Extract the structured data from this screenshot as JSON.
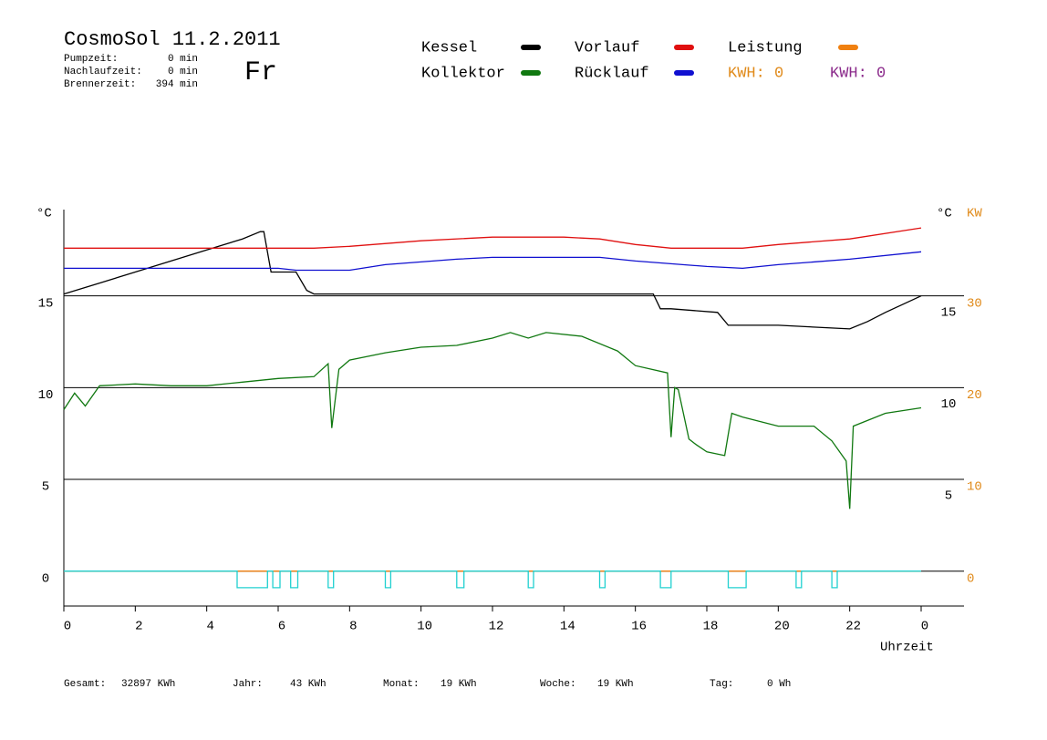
{
  "header": {
    "title": "CosmoSol 11.2.2011",
    "day": "Fr",
    "info": [
      [
        "Pumpzeit:",
        "0 min"
      ],
      [
        "Nachlaufzeit:",
        "0 min"
      ],
      [
        "Brennerzeit:",
        "394 min"
      ]
    ]
  },
  "kwh_labels": [
    {
      "text": "KWH: 0",
      "color": "#e08a1a"
    },
    {
      "text": "KWH: 0",
      "color": "#8b2a8b"
    }
  ],
  "footer": [
    [
      "Gesamt:",
      "32897 KWh"
    ],
    [
      "Jahr:",
      "43 KWh"
    ],
    [
      "Monat:",
      "19 KWh"
    ],
    [
      "Woche:",
      "19 KWh"
    ],
    [
      "Tag:",
      "0 Wh"
    ]
  ],
  "chart_data": {
    "type": "line",
    "y_label": "°C",
    "y3_label": "°C",
    "y2_label": "KW",
    "x_label": "Uhrzeit",
    "xlim": [
      0,
      24.0
    ],
    "xticks": [
      0,
      2,
      4,
      6,
      8,
      10,
      12,
      14,
      16,
      18,
      20,
      22,
      {
        "value": 24,
        "label": "0"
      }
    ],
    "ylim": [
      -1.9,
      19.7
    ],
    "yticks": [
      0,
      5,
      10,
      15
    ],
    "y3ticks": [
      5,
      10,
      15
    ],
    "y2lim": [
      -3.8,
      39.4
    ],
    "y2ticks": [
      0,
      10,
      20,
      30
    ],
    "grid": true,
    "series": [
      {
        "name": "Kessel",
        "color": "#000000",
        "x": [
          0,
          1,
          2,
          3,
          4,
          5,
          5.5,
          5.6,
          5.8,
          6.5,
          6.8,
          7,
          10,
          14,
          16.5,
          16.7,
          17,
          18.3,
          18.6,
          20,
          22,
          22.5,
          23,
          24
        ],
        "values": [
          15.1,
          15.7,
          16.3,
          16.9,
          17.5,
          18.1,
          18.5,
          18.5,
          16.3,
          16.3,
          15.3,
          15.1,
          15.1,
          15.1,
          15.1,
          14.3,
          14.3,
          14.1,
          13.4,
          13.4,
          13.2,
          13.6,
          14.1,
          15.0
        ]
      },
      {
        "name": "Vorlauf",
        "color": "#e01010",
        "x": [
          0,
          6.5,
          7,
          8,
          10,
          12,
          14,
          15,
          16,
          17,
          18,
          19,
          20,
          22,
          24
        ],
        "values": [
          17.6,
          17.6,
          17.6,
          17.7,
          18.0,
          18.2,
          18.2,
          18.1,
          17.8,
          17.6,
          17.6,
          17.6,
          17.8,
          18.1,
          18.7
        ]
      },
      {
        "name": "Leistung",
        "color": "#f08010",
        "axis": "y2",
        "x": [
          0,
          24
        ],
        "values": [
          0,
          0
        ]
      },
      {
        "name": "Kollektor",
        "color": "#107810",
        "x": [
          0,
          0.3,
          0.6,
          1,
          2,
          3,
          4,
          5,
          6,
          7,
          7.4,
          7.5,
          7.7,
          8,
          9,
          10,
          11,
          12,
          12.5,
          13,
          13.5,
          14.5,
          15.5,
          16,
          16.9,
          17.0,
          17.1,
          17.2,
          17.5,
          17.7,
          18,
          18.5,
          18.7,
          19,
          20,
          21,
          21.5,
          21.9,
          22.0,
          22.1,
          23,
          24
        ],
        "values": [
          8.8,
          9.7,
          9.0,
          10.1,
          10.2,
          10.1,
          10.1,
          10.3,
          10.5,
          10.6,
          11.3,
          7.8,
          11.0,
          11.5,
          11.9,
          12.2,
          12.3,
          12.7,
          13.0,
          12.7,
          13.0,
          12.8,
          12.0,
          11.2,
          10.8,
          7.3,
          10.0,
          9.9,
          7.2,
          6.9,
          6.5,
          6.3,
          8.6,
          8.4,
          7.9,
          7.9,
          7.1,
          6.0,
          3.4,
          7.9,
          8.6,
          8.9
        ]
      },
      {
        "name": "Rücklauf",
        "color": "#1010d0",
        "x": [
          0,
          6,
          6.5,
          8,
          9,
          11,
          12,
          14,
          15,
          16,
          18,
          19,
          20,
          22,
          24
        ],
        "values": [
          16.5,
          16.5,
          16.4,
          16.4,
          16.7,
          17.0,
          17.1,
          17.1,
          17.1,
          16.9,
          16.6,
          16.5,
          16.7,
          17.0,
          17.4
        ]
      },
      {
        "color": "#20d0d0",
        "x": [
          0,
          4.85,
          4.85,
          5.7,
          5.7,
          5.85,
          5.85,
          6.05,
          6.05,
          6.35,
          6.35,
          6.55,
          6.55,
          7.4,
          7.4,
          7.55,
          7.55,
          9.0,
          9.0,
          9.15,
          9.15,
          11.0,
          11.0,
          11.2,
          11.2,
          13.0,
          13.0,
          13.15,
          13.15,
          15.0,
          15.0,
          15.15,
          15.15,
          16.7,
          16.7,
          17.0,
          17.0,
          18.6,
          18.6,
          19.1,
          19.1,
          20.5,
          20.5,
          20.65,
          20.65,
          21.5,
          21.5,
          21.65,
          21.65,
          24
        ],
        "values": [
          0,
          0,
          -0.9,
          -0.9,
          0,
          0,
          -0.9,
          -0.9,
          0,
          0,
          -0.9,
          -0.9,
          0,
          0,
          -0.9,
          -0.9,
          0,
          0,
          -0.9,
          -0.9,
          0,
          0,
          -0.9,
          -0.9,
          0,
          0,
          -0.9,
          -0.9,
          0,
          0,
          -0.9,
          -0.9,
          0,
          0,
          -0.9,
          -0.9,
          0,
          0,
          -0.9,
          -0.9,
          0,
          0,
          -0.9,
          -0.9,
          0,
          0,
          -0.9,
          -0.9,
          0,
          0
        ]
      }
    ]
  }
}
